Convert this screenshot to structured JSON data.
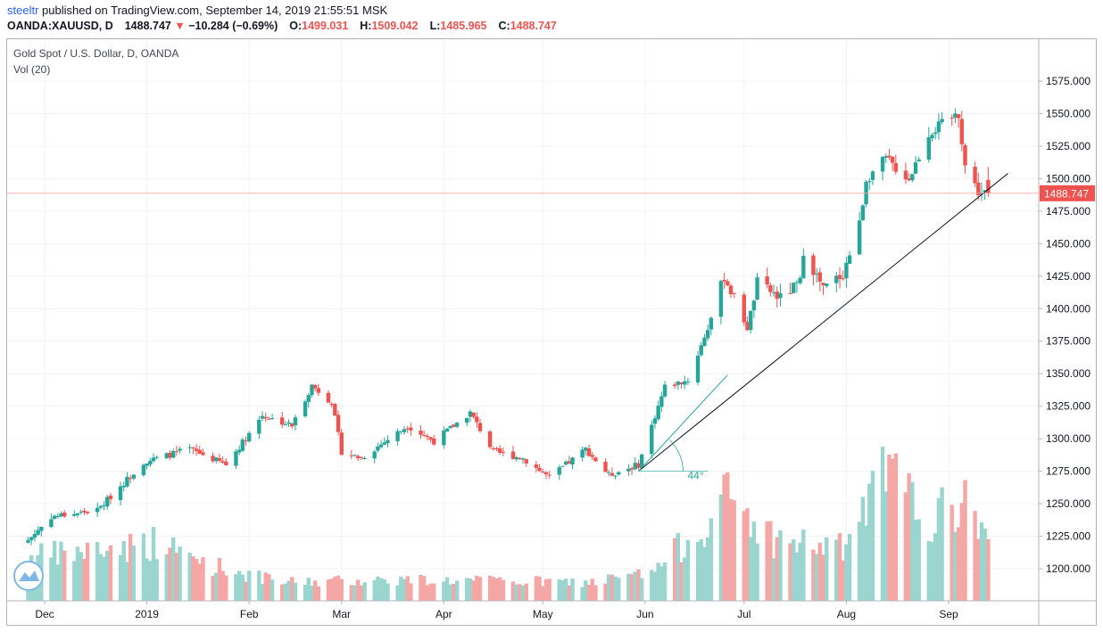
{
  "header": {
    "user": "steeltr",
    "published": "published on TradingView.com, September 14, 2019 21:55:51 MSK",
    "symbol": "OANDA:XAUUSD, D",
    "last": "1488.747",
    "change": "−10.284 (−0.69%)",
    "open_label": "O:",
    "open": "1499.031",
    "high_label": "H:",
    "high": "1509.042",
    "low_label": "L:",
    "low": "1485.965",
    "close_label": "C:",
    "close": "1488.747"
  },
  "legend": {
    "series": "Gold Spot / U.S. Dollar, D, OANDA",
    "volume": "Vol (20)"
  },
  "colors": {
    "up": "#26a69a",
    "down": "#ef5350",
    "vol_up": "#9bd5cf",
    "vol_down": "#f5a7a6",
    "trendline": "#131722",
    "angle": "#26a69a",
    "price_label_bg": "#ef5350"
  },
  "chart_data": {
    "type": "candlestick",
    "title": "Gold Spot / U.S. Dollar, D, OANDA",
    "y_ticks": [
      "1575.000",
      "1550.000",
      "1525.000",
      "1500.000",
      "1475.000",
      "1450.000",
      "1425.000",
      "1400.000",
      "1375.000",
      "1350.000",
      "1325.000",
      "1300.000",
      "1275.000",
      "1250.000",
      "1225.000",
      "1200.000"
    ],
    "ylim": [
      1182,
      1588
    ],
    "x_ticks": [
      "Dec",
      "2019",
      "Feb",
      "Mar",
      "Apr",
      "May",
      "Jun",
      "Jul",
      "Aug",
      "Sep"
    ],
    "current_price": "1488.747",
    "angle_label": "44°",
    "anchors": [
      {
        "date": "2018-11-26",
        "price": 1222
      },
      {
        "date": "2018-12-03",
        "price": 1240
      },
      {
        "date": "2018-12-17",
        "price": 1245
      },
      {
        "date": "2018-12-31",
        "price": 1282
      },
      {
        "date": "2019-01-14",
        "price": 1292
      },
      {
        "date": "2019-01-25",
        "price": 1280
      },
      {
        "date": "2019-02-05",
        "price": 1318
      },
      {
        "date": "2019-02-14",
        "price": 1310
      },
      {
        "date": "2019-02-20",
        "price": 1341
      },
      {
        "date": "2019-02-26",
        "price": 1328
      },
      {
        "date": "2019-03-01",
        "price": 1290
      },
      {
        "date": "2019-03-07",
        "price": 1285
      },
      {
        "date": "2019-03-21",
        "price": 1310
      },
      {
        "date": "2019-03-29",
        "price": 1298
      },
      {
        "date": "2019-04-09",
        "price": 1320
      },
      {
        "date": "2019-04-16",
        "price": 1290
      },
      {
        "date": "2019-04-25",
        "price": 1285
      },
      {
        "date": "2019-05-03",
        "price": 1270
      },
      {
        "date": "2019-05-14",
        "price": 1292
      },
      {
        "date": "2019-05-21",
        "price": 1272
      },
      {
        "date": "2019-05-30",
        "price": 1280
      },
      {
        "date": "2019-06-03",
        "price": 1310
      },
      {
        "date": "2019-06-07",
        "price": 1340
      },
      {
        "date": "2019-06-14",
        "price": 1345
      },
      {
        "date": "2019-06-20",
        "price": 1385
      },
      {
        "date": "2019-06-25",
        "price": 1425
      },
      {
        "date": "2019-07-02",
        "price": 1385
      },
      {
        "date": "2019-07-05",
        "price": 1420
      },
      {
        "date": "2019-07-12",
        "price": 1408
      },
      {
        "date": "2019-07-18",
        "price": 1420
      },
      {
        "date": "2019-07-19",
        "price": 1445
      },
      {
        "date": "2019-07-25",
        "price": 1415
      },
      {
        "date": "2019-07-31",
        "price": 1427
      },
      {
        "date": "2019-08-05",
        "price": 1465
      },
      {
        "date": "2019-08-07",
        "price": 1500
      },
      {
        "date": "2019-08-13",
        "price": 1515
      },
      {
        "date": "2019-08-20",
        "price": 1500
      },
      {
        "date": "2019-08-26",
        "price": 1535
      },
      {
        "date": "2019-09-04",
        "price": 1550
      },
      {
        "date": "2019-09-06",
        "price": 1510
      },
      {
        "date": "2019-09-10",
        "price": 1490
      },
      {
        "date": "2019-09-13",
        "price": 1488.747
      }
    ],
    "volume_anchors": [
      {
        "date": "2018-11-26",
        "value": 1.4
      },
      {
        "date": "2018-12-20",
        "value": 1.7
      },
      {
        "date": "2019-01-03",
        "value": 1.9
      },
      {
        "date": "2019-01-20",
        "value": 1.2
      },
      {
        "date": "2019-02-10",
        "value": 0.6
      },
      {
        "date": "2019-03-15",
        "value": 0.7
      },
      {
        "date": "2019-05-15",
        "value": 0.6
      },
      {
        "date": "2019-06-03",
        "value": 0.9
      },
      {
        "date": "2019-06-20",
        "value": 2.6
      },
      {
        "date": "2019-06-26",
        "value": 3.4
      },
      {
        "date": "2019-07-10",
        "value": 2.0
      },
      {
        "date": "2019-07-31",
        "value": 1.7
      },
      {
        "date": "2019-08-08",
        "value": 3.2
      },
      {
        "date": "2019-08-13",
        "value": 4.2
      },
      {
        "date": "2019-08-26",
        "value": 2.6
      },
      {
        "date": "2019-09-05",
        "value": 3.2
      },
      {
        "date": "2019-09-13",
        "value": 2.4
      }
    ],
    "trendlines": [
      {
        "from": {
          "date": "2019-05-30",
          "price": 1275
        },
        "to": {
          "date": "2019-09-19",
          "price": 1504
        }
      },
      {
        "from": {
          "date": "2019-05-30",
          "price": 1275
        },
        "to": {
          "date": "2019-06-26",
          "price": 1349
        }
      }
    ]
  }
}
